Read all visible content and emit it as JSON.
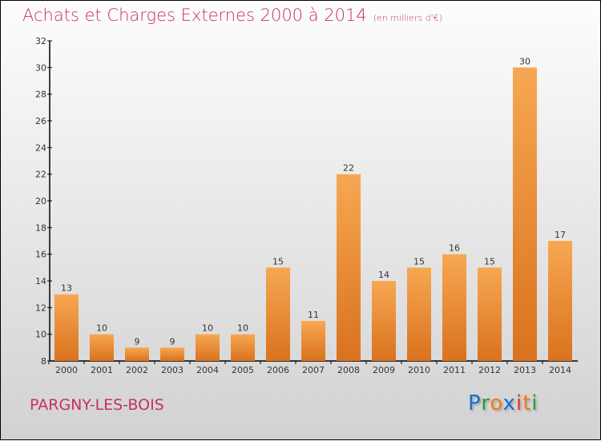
{
  "chart_data": {
    "type": "bar",
    "title": "Achats et Charges Externes 2000 à 2014",
    "subtitle": "(en milliers d'€)",
    "categories": [
      "2000",
      "2001",
      "2002",
      "2003",
      "2004",
      "2005",
      "2006",
      "2007",
      "2008",
      "2009",
      "2010",
      "2011",
      "2012",
      "2013",
      "2014"
    ],
    "values": [
      13,
      10,
      9,
      9,
      10,
      10,
      15,
      11,
      22,
      14,
      15,
      16,
      15,
      30,
      17
    ],
    "ylim": [
      8,
      32
    ],
    "yticks": [
      8,
      10,
      12,
      14,
      16,
      18,
      20,
      22,
      24,
      26,
      28,
      30,
      32
    ],
    "xlabel": "",
    "ylabel": "",
    "bar_color": "#f0913a"
  },
  "commune": "PARGNY-LES-BOIS",
  "logo": {
    "letters": [
      "P",
      "r",
      "o",
      "x",
      "i",
      "t",
      "i"
    ],
    "colors": [
      "#1a6fc9",
      "#2a9b3a",
      "#f07d10",
      "#1a6fc9",
      "#e5322a",
      "#f07d10",
      "#2a9b3a"
    ]
  }
}
